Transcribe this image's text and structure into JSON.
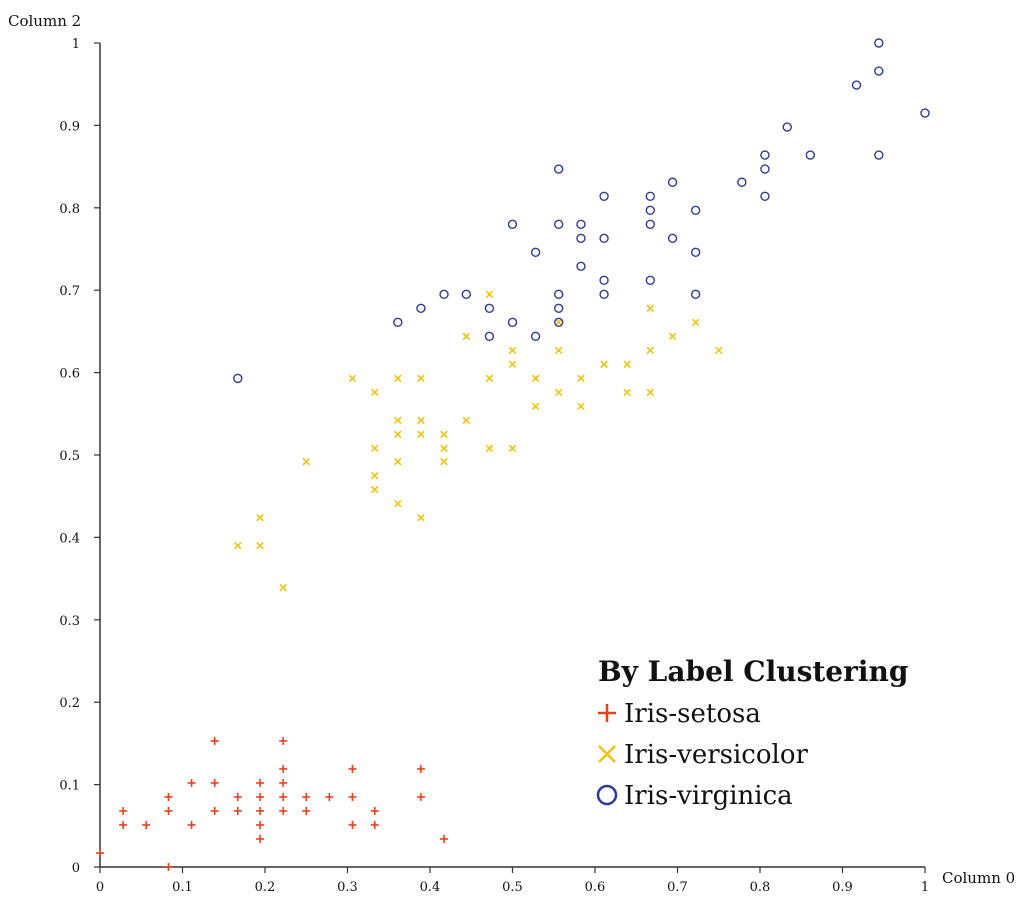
{
  "chart_data": {
    "type": "scatter",
    "title": "",
    "xlabel": "Column 0",
    "ylabel": "Column 2",
    "xlim": [
      0,
      1
    ],
    "ylim": [
      0,
      1
    ],
    "x_ticks": [
      "0",
      "0.1",
      "0.2",
      "0.3",
      "0.4",
      "0.5",
      "0.6",
      "0.7",
      "0.8",
      "0.9",
      "1"
    ],
    "y_ticks": [
      "0",
      "0.1",
      "0.2",
      "0.3",
      "0.4",
      "0.5",
      "0.6",
      "0.7",
      "0.8",
      "0.9",
      "1"
    ],
    "grid": false,
    "legend": {
      "title": "By Label Clustering",
      "placement": "bottom-right"
    },
    "series": [
      {
        "name": "Iris-setosa",
        "marker": "plus",
        "color": "#e8401c",
        "points": [
          [
            0.0,
            0.017
          ],
          [
            0.028,
            0.051
          ],
          [
            0.028,
            0.068
          ],
          [
            0.056,
            0.051
          ],
          [
            0.083,
            0.0
          ],
          [
            0.083,
            0.068
          ],
          [
            0.083,
            0.085
          ],
          [
            0.111,
            0.051
          ],
          [
            0.111,
            0.102
          ],
          [
            0.139,
            0.068
          ],
          [
            0.139,
            0.102
          ],
          [
            0.139,
            0.153
          ],
          [
            0.167,
            0.068
          ],
          [
            0.167,
            0.085
          ],
          [
            0.194,
            0.034
          ],
          [
            0.194,
            0.051
          ],
          [
            0.194,
            0.068
          ],
          [
            0.194,
            0.085
          ],
          [
            0.194,
            0.102
          ],
          [
            0.222,
            0.068
          ],
          [
            0.222,
            0.085
          ],
          [
            0.222,
            0.102
          ],
          [
            0.222,
            0.119
          ],
          [
            0.222,
            0.153
          ],
          [
            0.25,
            0.068
          ],
          [
            0.25,
            0.085
          ],
          [
            0.278,
            0.085
          ],
          [
            0.306,
            0.051
          ],
          [
            0.306,
            0.085
          ],
          [
            0.306,
            0.119
          ],
          [
            0.333,
            0.051
          ],
          [
            0.333,
            0.068
          ],
          [
            0.389,
            0.085
          ],
          [
            0.389,
            0.119
          ],
          [
            0.417,
            0.034
          ]
        ]
      },
      {
        "name": "Iris-versicolor",
        "marker": "cross",
        "color": "#f2c20f",
        "points": [
          [
            0.167,
            0.39
          ],
          [
            0.194,
            0.39
          ],
          [
            0.194,
            0.424
          ],
          [
            0.222,
            0.339
          ],
          [
            0.25,
            0.492
          ],
          [
            0.306,
            0.593
          ],
          [
            0.333,
            0.458
          ],
          [
            0.333,
            0.475
          ],
          [
            0.333,
            0.508
          ],
          [
            0.333,
            0.576
          ],
          [
            0.361,
            0.441
          ],
          [
            0.361,
            0.492
          ],
          [
            0.361,
            0.525
          ],
          [
            0.361,
            0.542
          ],
          [
            0.361,
            0.593
          ],
          [
            0.389,
            0.424
          ],
          [
            0.389,
            0.525
          ],
          [
            0.389,
            0.542
          ],
          [
            0.389,
            0.593
          ],
          [
            0.417,
            0.492
          ],
          [
            0.417,
            0.508
          ],
          [
            0.417,
            0.525
          ],
          [
            0.444,
            0.542
          ],
          [
            0.444,
            0.644
          ],
          [
            0.472,
            0.508
          ],
          [
            0.472,
            0.593
          ],
          [
            0.472,
            0.695
          ],
          [
            0.5,
            0.508
          ],
          [
            0.5,
            0.61
          ],
          [
            0.5,
            0.627
          ],
          [
            0.528,
            0.559
          ],
          [
            0.528,
            0.593
          ],
          [
            0.556,
            0.576
          ],
          [
            0.556,
            0.627
          ],
          [
            0.556,
            0.661
          ],
          [
            0.583,
            0.559
          ],
          [
            0.583,
            0.593
          ],
          [
            0.611,
            0.61
          ],
          [
            0.639,
            0.576
          ],
          [
            0.639,
            0.61
          ],
          [
            0.667,
            0.576
          ],
          [
            0.667,
            0.627
          ],
          [
            0.667,
            0.678
          ],
          [
            0.694,
            0.644
          ],
          [
            0.722,
            0.661
          ],
          [
            0.75,
            0.627
          ]
        ]
      },
      {
        "name": "Iris-virginica",
        "marker": "circle",
        "color": "#2e3a9a",
        "points": [
          [
            0.167,
            0.593
          ],
          [
            0.361,
            0.661
          ],
          [
            0.389,
            0.678
          ],
          [
            0.417,
            0.695
          ],
          [
            0.444,
            0.695
          ],
          [
            0.472,
            0.644
          ],
          [
            0.472,
            0.678
          ],
          [
            0.5,
            0.661
          ],
          [
            0.5,
            0.78
          ],
          [
            0.528,
            0.644
          ],
          [
            0.528,
            0.746
          ],
          [
            0.556,
            0.661
          ],
          [
            0.556,
            0.678
          ],
          [
            0.556,
            0.695
          ],
          [
            0.556,
            0.78
          ],
          [
            0.556,
            0.847
          ],
          [
            0.583,
            0.729
          ],
          [
            0.583,
            0.763
          ],
          [
            0.583,
            0.78
          ],
          [
            0.611,
            0.695
          ],
          [
            0.611,
            0.712
          ],
          [
            0.611,
            0.763
          ],
          [
            0.611,
            0.814
          ],
          [
            0.667,
            0.712
          ],
          [
            0.667,
            0.78
          ],
          [
            0.667,
            0.797
          ],
          [
            0.667,
            0.814
          ],
          [
            0.694,
            0.763
          ],
          [
            0.694,
            0.831
          ],
          [
            0.722,
            0.695
          ],
          [
            0.722,
            0.746
          ],
          [
            0.722,
            0.797
          ],
          [
            0.778,
            0.831
          ],
          [
            0.806,
            0.814
          ],
          [
            0.806,
            0.847
          ],
          [
            0.806,
            0.864
          ],
          [
            0.833,
            0.898
          ],
          [
            0.861,
            0.864
          ],
          [
            0.917,
            0.949
          ],
          [
            0.944,
            0.864
          ],
          [
            0.944,
            0.966
          ],
          [
            0.944,
            1.0
          ],
          [
            1.0,
            0.915
          ]
        ]
      }
    ]
  }
}
